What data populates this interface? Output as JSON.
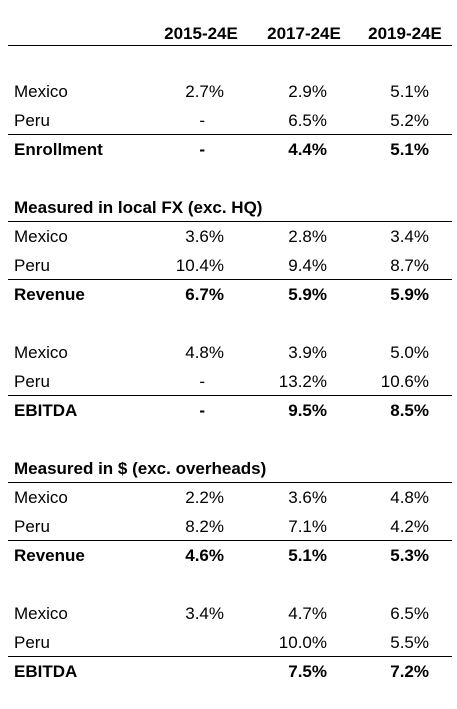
{
  "headers": [
    "2015-24E",
    "2017-24E",
    "2019-24E"
  ],
  "section_titles": {
    "local_fx": "Measured in local FX (exc. HQ)",
    "usd": "Measured in $ (exc. overheads)"
  },
  "enrollment": {
    "mexico": {
      "label": "Mexico",
      "v": [
        "2.7%",
        "2.9%",
        "5.1%"
      ]
    },
    "peru": {
      "label": "Peru",
      "v": [
        "-",
        "6.5%",
        "5.2%"
      ]
    },
    "total": {
      "label": "Enrollment",
      "v": [
        "-",
        "4.4%",
        "5.1%"
      ]
    }
  },
  "local_revenue": {
    "mexico": {
      "label": "Mexico",
      "v": [
        "3.6%",
        "2.8%",
        "3.4%"
      ]
    },
    "peru": {
      "label": "Peru",
      "v": [
        "10.4%",
        "9.4%",
        "8.7%"
      ]
    },
    "total": {
      "label": "Revenue",
      "v": [
        "6.7%",
        "5.9%",
        "5.9%"
      ]
    }
  },
  "local_ebitda": {
    "mexico": {
      "label": "Mexico",
      "v": [
        "4.8%",
        "3.9%",
        "5.0%"
      ]
    },
    "peru": {
      "label": "Peru",
      "v": [
        "-",
        "13.2%",
        "10.6%"
      ]
    },
    "total": {
      "label": "EBITDA",
      "v": [
        "-",
        "9.5%",
        "8.5%"
      ]
    }
  },
  "usd_revenue": {
    "mexico": {
      "label": "Mexico",
      "v": [
        "2.2%",
        "3.6%",
        "4.8%"
      ]
    },
    "peru": {
      "label": "Peru",
      "v": [
        "8.2%",
        "7.1%",
        "4.2%"
      ]
    },
    "total": {
      "label": "Revenue",
      "v": [
        "4.6%",
        "5.1%",
        "5.3%"
      ]
    }
  },
  "usd_ebitda": {
    "mexico": {
      "label": "Mexico",
      "v": [
        "3.4%",
        "4.7%",
        "6.5%"
      ]
    },
    "peru": {
      "label": "Peru",
      "v": [
        "",
        "10.0%",
        "5.5%"
      ]
    },
    "total": {
      "label": "EBITDA",
      "v": [
        "",
        "7.5%",
        "7.2%"
      ]
    }
  }
}
